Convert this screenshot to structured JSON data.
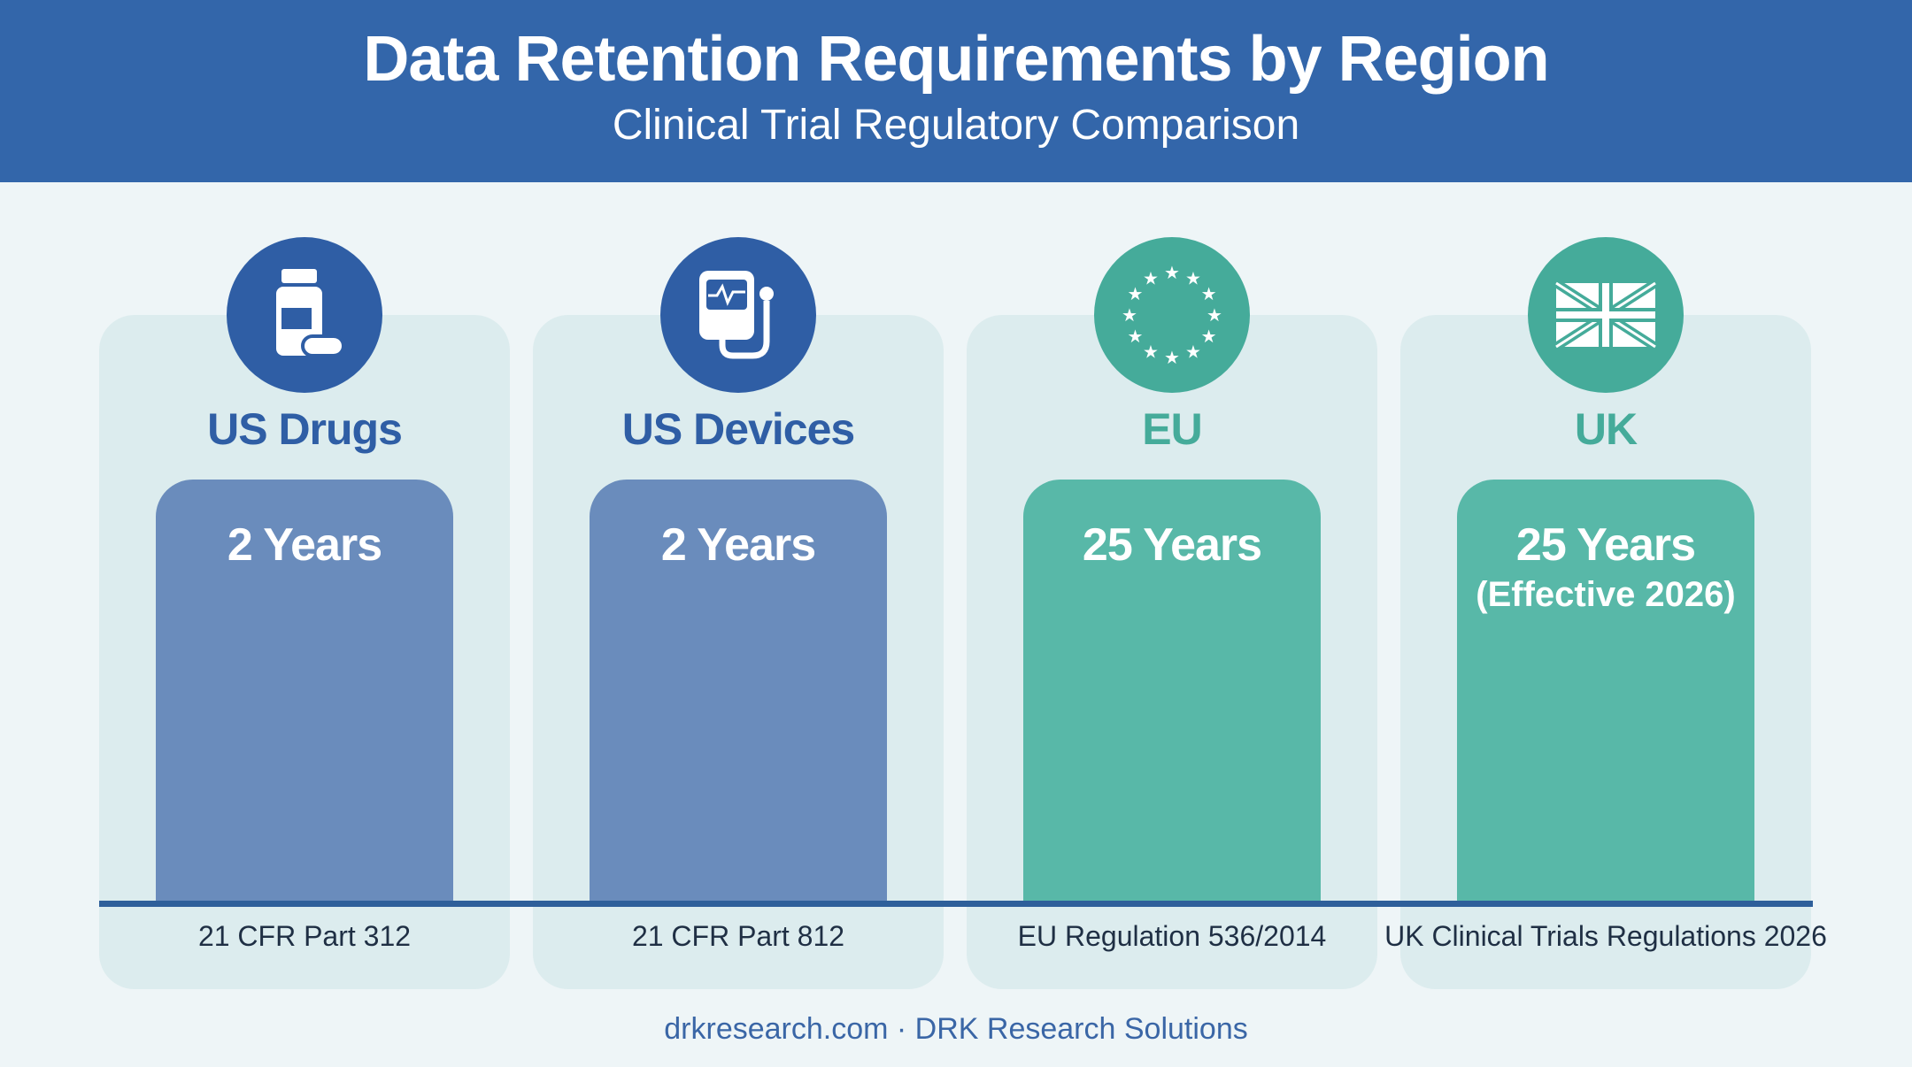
{
  "title": "Data Retention Requirements by Region",
  "subtitle": "Clinical Trial Regulatory Comparison",
  "footer": "drkresearch.com · DRK Research Solutions",
  "colors": {
    "header": "#3366aa",
    "blue_bar": "#6a8cbc",
    "teal_bar": "#58b8a8",
    "blue_label": "#2f5ea5",
    "teal_label": "#45ab9a",
    "card": "#dcecee"
  },
  "chart_data": {
    "type": "bar",
    "categories": [
      "US Drugs",
      "US Devices",
      "EU",
      "UK"
    ],
    "values": [
      2,
      2,
      25,
      25
    ],
    "units": "Years",
    "bar_labels": [
      "2 Years",
      "2 Years",
      "25 Years",
      "25 Years"
    ],
    "notes": [
      "",
      "",
      "",
      "(Effective 2026)"
    ],
    "regulations": [
      "21 CFR Part 312",
      "21 CFR Part 812",
      "EU Regulation 536/2014",
      "UK Clinical Trials Regulations 2026"
    ],
    "icons": [
      "medicine-bottle-icon",
      "medical-monitor-icon",
      "eu-flag-icon",
      "uk-flag-icon"
    ],
    "bar_colors": [
      "#6a8cbc",
      "#6a8cbc",
      "#58b8a8",
      "#58b8a8"
    ],
    "label_colors": [
      "#2f5ea5",
      "#2f5ea5",
      "#45ab9a",
      "#45ab9a"
    ],
    "icon_colors": [
      "#2f5ea5",
      "#2f5ea5",
      "#45ab9a",
      "#45ab9a"
    ]
  }
}
